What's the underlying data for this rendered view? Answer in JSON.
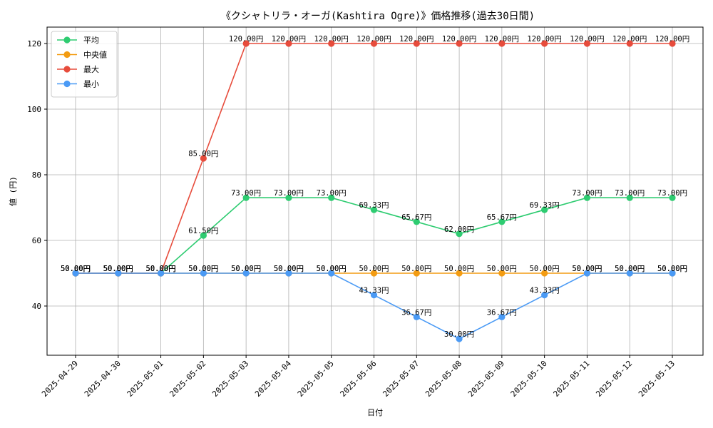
{
  "chart_data": {
    "type": "line",
    "title": "《クシャトリラ・オーガ(Kashtira Ogre)》価格推移(過去30日間)",
    "xlabel": "日付",
    "ylabel": "値 (円)",
    "categories": [
      "2025-04-29",
      "2025-04-30",
      "2025-05-01",
      "2025-05-02",
      "2025-05-03",
      "2025-05-04",
      "2025-05-05",
      "2025-05-06",
      "2025-05-07",
      "2025-05-08",
      "2025-05-09",
      "2025-05-10",
      "2025-05-11",
      "2025-05-12",
      "2025-05-13"
    ],
    "ylim": [
      25,
      125
    ],
    "yticks": [
      40,
      60,
      80,
      100,
      120
    ],
    "grid": true,
    "legend_position": "top-left",
    "value_suffix": "円",
    "series": [
      {
        "name": "平均",
        "color": "#2ecc71",
        "values": [
          50,
          50,
          50,
          61.5,
          73,
          73,
          73,
          69.33,
          65.67,
          62,
          65.67,
          69.33,
          73,
          73,
          73
        ]
      },
      {
        "name": "中央値",
        "color": "#f39c12",
        "values": [
          50,
          50,
          50,
          50,
          50,
          50,
          50,
          50,
          50,
          50,
          50,
          50,
          50,
          50,
          50
        ]
      },
      {
        "name": "最大",
        "color": "#e74c3c",
        "values": [
          50,
          50,
          50,
          85,
          120,
          120,
          120,
          120,
          120,
          120,
          120,
          120,
          120,
          120,
          120
        ]
      },
      {
        "name": "最小",
        "color": "#4a9af5",
        "values": [
          50,
          50,
          50,
          50,
          50,
          50,
          50,
          43.33,
          36.67,
          30,
          36.67,
          43.33,
          50,
          50,
          50
        ]
      }
    ]
  }
}
